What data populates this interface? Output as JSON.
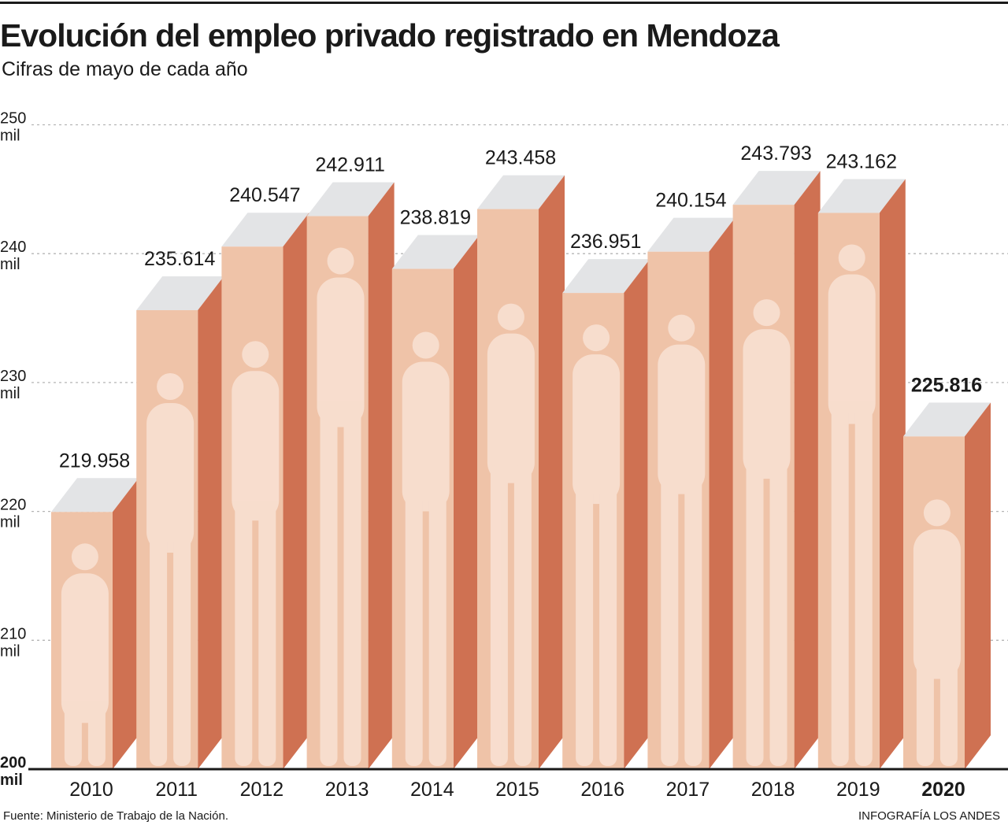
{
  "header": {
    "title": "Evolución del empleo privado registrado en Mendoza",
    "subtitle": "Cifras de mayo de cada año"
  },
  "footer": {
    "source": "Fuente: Ministerio de Trabajo de la Nación.",
    "credit": "INFOGRAFÍA LOS ANDES"
  },
  "colors": {
    "front": "#efc3a8",
    "side": "#cf7152",
    "top": "#e3e4e6",
    "silhouette": "#fbe7dc",
    "grid": "#b5b5b5",
    "text": "#1a1a1a"
  },
  "chart_data": {
    "type": "bar",
    "title": "Evolución del empleo privado registrado en Mendoza",
    "subtitle": "Cifras de mayo de cada año",
    "xlabel": "",
    "ylabel": "",
    "ylim": [
      200,
      250
    ],
    "yticks": [
      {
        "value": 250,
        "label": "250",
        "unit": "mil"
      },
      {
        "value": 240,
        "label": "240",
        "unit": "mil"
      },
      {
        "value": 230,
        "label": "230",
        "unit": "mil"
      },
      {
        "value": 220,
        "label": "220",
        "unit": "mil"
      },
      {
        "value": 210,
        "label": "210",
        "unit": "mil"
      },
      {
        "value": 200,
        "label": "200",
        "unit": "mil"
      }
    ],
    "categories": [
      "2010",
      "2011",
      "2012",
      "2013",
      "2014",
      "2015",
      "2016",
      "2017",
      "2018",
      "2019",
      "2020"
    ],
    "values": [
      219.958,
      235.614,
      240.547,
      242.911,
      238.819,
      243.458,
      236.951,
      240.154,
      243.793,
      243.162,
      225.816
    ],
    "value_labels": [
      "219.958",
      "235.614",
      "240.547",
      "242.911",
      "238.819",
      "243.458",
      "236.951",
      "240.154",
      "243.793",
      "243.162",
      "225.816"
    ],
    "highlight_category": "2020",
    "grid": true
  }
}
